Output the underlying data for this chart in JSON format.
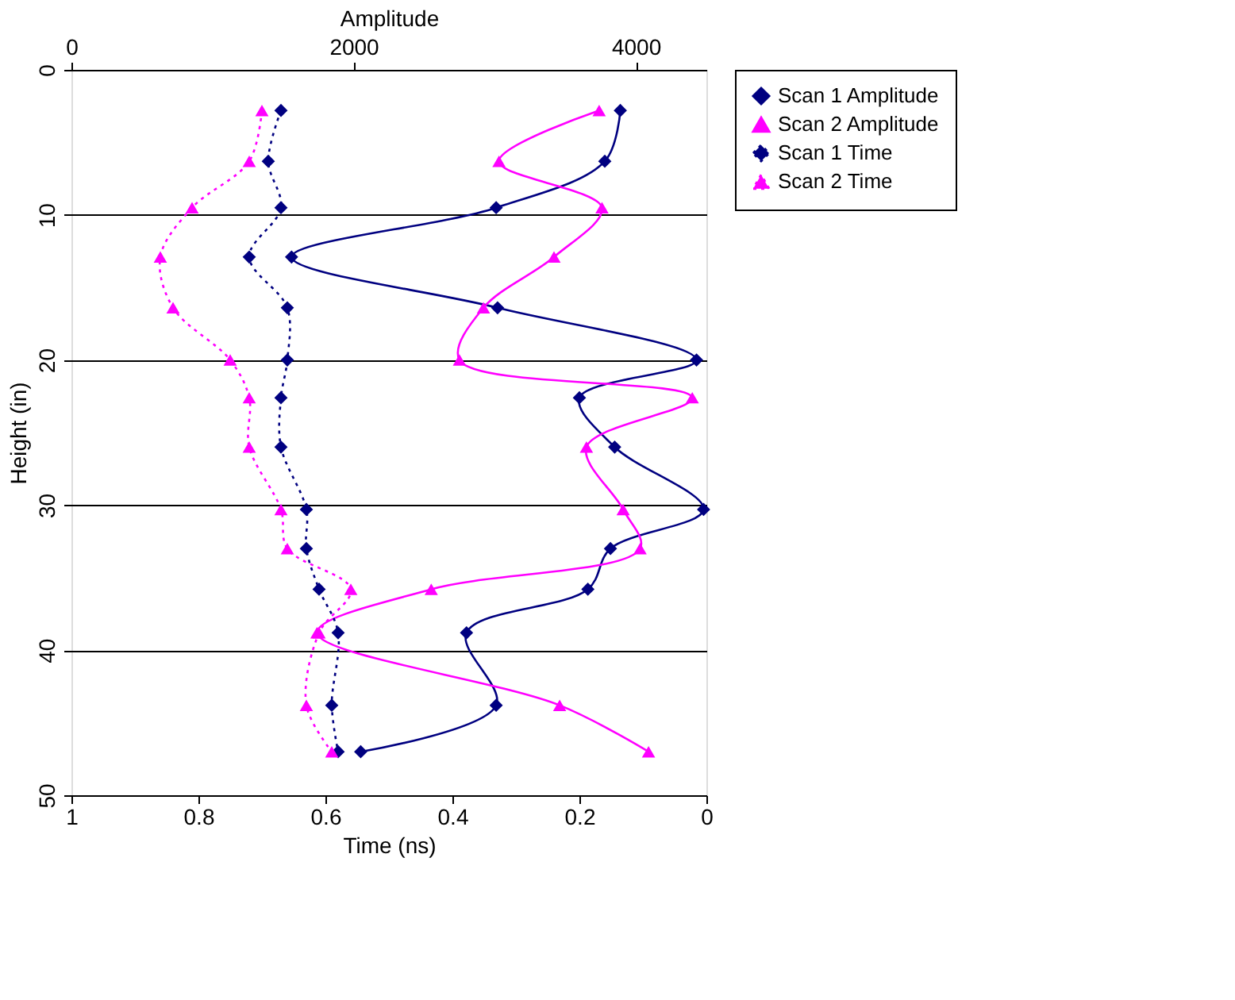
{
  "chart_data": {
    "type": "line",
    "xlabel": "Time (ns)",
    "ylabel": "Height (in)",
    "x2label": "Amplitude",
    "xlim": [
      1,
      0
    ],
    "xticks": [
      1,
      0.8,
      0.6,
      0.4,
      0.2,
      0
    ],
    "x2lim": [
      0,
      4500
    ],
    "x2ticks": [
      0,
      2000,
      4000
    ],
    "ylim": [
      50,
      0
    ],
    "yticks": [
      0,
      10,
      20,
      30,
      40,
      50
    ],
    "grid": "y",
    "legend": "right",
    "series": [
      {
        "name": "Scan 1 Amplitude",
        "color": "#000080",
        "axis": "x2",
        "marker": "diamond",
        "line_style": "solid",
        "x": [
          3890,
          3780,
          3010,
          1560,
          3020,
          4430,
          3600,
          3850,
          4480,
          3820,
          3660,
          2800,
          3010,
          2050
        ],
        "values": [
          2.8,
          6.3,
          9.5,
          12.9,
          16.4,
          20,
          22.6,
          26,
          30.3,
          33,
          35.8,
          38.8,
          43.8,
          47
        ]
      },
      {
        "name": "Scan 2 Amplitude",
        "color": "#ff00ff",
        "axis": "x2",
        "marker": "triangle",
        "line_style": "solid",
        "x": [
          3740,
          3030,
          3760,
          3420,
          2920,
          2750,
          4400,
          3650,
          3910,
          4030,
          2550,
          1740,
          3460,
          4090
        ],
        "values": [
          2.8,
          6.3,
          9.5,
          12.9,
          16.4,
          20,
          22.6,
          26,
          30.3,
          33,
          35.8,
          38.8,
          43.8,
          47
        ]
      },
      {
        "name": "Scan 1 Time",
        "color": "#000080",
        "marker": "diamond",
        "line_style": "dotted",
        "x": [
          0.67,
          0.69,
          0.67,
          0.72,
          0.66,
          0.66,
          0.67,
          0.67,
          0.63,
          0.63,
          0.61,
          0.58,
          0.59,
          0.58
        ],
        "values": [
          2.8,
          6.3,
          9.5,
          12.9,
          16.4,
          20,
          22.6,
          26,
          30.3,
          33,
          35.8,
          38.8,
          43.8,
          47
        ]
      },
      {
        "name": "Scan 2 Time",
        "color": "#ff00ff",
        "marker": "triangle",
        "line_style": "dotted",
        "x": [
          0.7,
          0.72,
          0.81,
          0.86,
          0.84,
          0.75,
          0.72,
          0.72,
          0.67,
          0.66,
          0.56,
          0.61,
          0.63,
          0.59
        ],
        "values": [
          2.8,
          6.3,
          9.5,
          12.9,
          16.4,
          20,
          22.6,
          26,
          30.3,
          33,
          35.8,
          38.8,
          43.8,
          47
        ]
      }
    ]
  }
}
